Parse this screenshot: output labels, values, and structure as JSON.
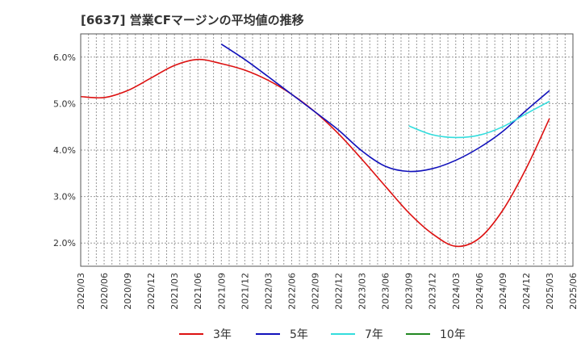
{
  "chart_data": {
    "type": "line",
    "title": "[6637]  営業CFマージンの平均値の推移",
    "xlabel": "",
    "ylabel": "",
    "x": [
      "2020/03",
      "2020/06",
      "2020/09",
      "2020/12",
      "2021/03",
      "2021/06",
      "2021/09",
      "2021/12",
      "2022/03",
      "2022/06",
      "2022/09",
      "2022/12",
      "2023/03",
      "2023/06",
      "2023/09",
      "2023/12",
      "2024/03",
      "2024/06",
      "2024/09",
      "2024/12",
      "2025/03",
      "2025/06"
    ],
    "ylim": [
      1.5,
      6.5
    ],
    "yticks": [
      2.0,
      3.0,
      4.0,
      5.0,
      6.0
    ],
    "ytick_labels": [
      "2.0%",
      "3.0%",
      "4.0%",
      "5.0%",
      "6.0%"
    ],
    "grid": true,
    "legend_position": "bottom",
    "series": [
      {
        "name": "3年",
        "color": "#dd1111",
        "values": [
          5.15,
          5.13,
          5.28,
          5.55,
          5.82,
          5.95,
          5.86,
          5.72,
          5.5,
          5.2,
          4.82,
          4.35,
          3.8,
          3.22,
          2.65,
          2.2,
          1.93,
          2.1,
          2.7,
          3.6,
          4.68,
          null
        ]
      },
      {
        "name": "5年",
        "color": "#1111bb",
        "values": [
          null,
          null,
          null,
          null,
          null,
          null,
          6.28,
          5.95,
          5.58,
          5.2,
          4.82,
          4.43,
          3.98,
          3.65,
          3.54,
          3.6,
          3.78,
          4.05,
          4.4,
          4.85,
          5.28,
          null
        ]
      },
      {
        "name": "7年",
        "color": "#33dddd",
        "values": [
          null,
          null,
          null,
          null,
          null,
          null,
          null,
          null,
          null,
          null,
          null,
          null,
          null,
          null,
          4.52,
          4.33,
          4.27,
          4.32,
          4.5,
          4.78,
          5.05,
          null
        ]
      },
      {
        "name": "10年",
        "color": "#228822",
        "values": [
          null,
          null,
          null,
          null,
          null,
          null,
          null,
          null,
          null,
          null,
          null,
          null,
          null,
          null,
          null,
          null,
          null,
          null,
          null,
          null,
          null,
          null
        ]
      }
    ]
  }
}
